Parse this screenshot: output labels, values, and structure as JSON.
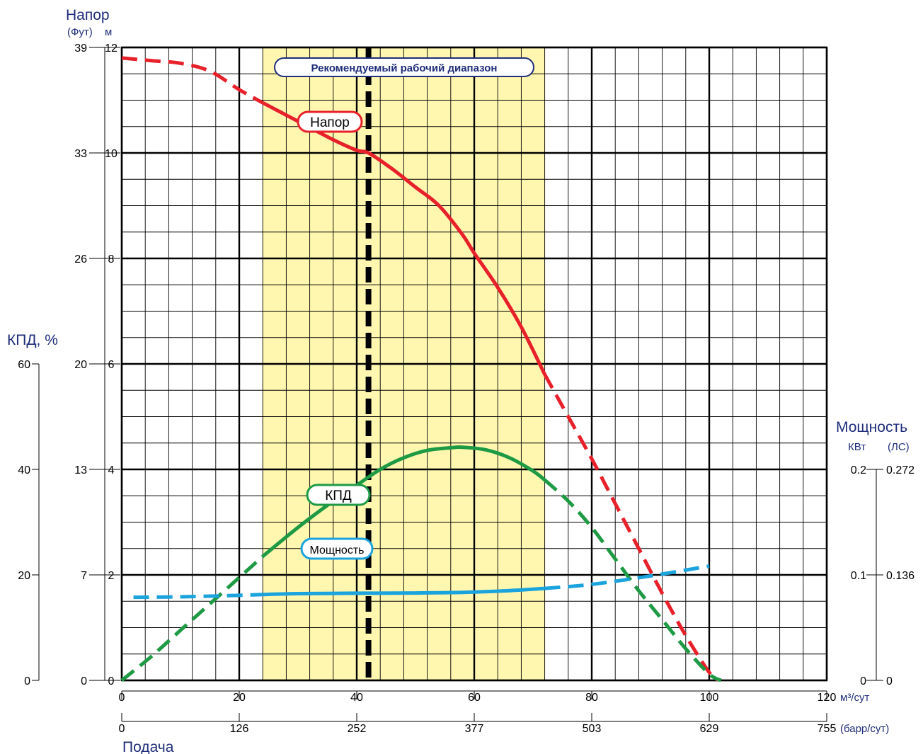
{
  "chart_data": {
    "type": "line",
    "axes": {
      "head": {
        "title": "Напор",
        "units": [
          "(Фут)",
          "м"
        ],
        "range_m": [
          0,
          12
        ],
        "ticks_ft": [
          "39",
          "33",
          "26",
          "20",
          "13",
          "7",
          "0"
        ],
        "ticks_m": [
          "12",
          "10",
          "8",
          "6",
          "4",
          "2",
          "0"
        ]
      },
      "efficiency": {
        "title": "КПД, %",
        "range": [
          0,
          60
        ],
        "ticks": [
          "60",
          "40",
          "20",
          "0"
        ]
      },
      "power": {
        "title": "Мощность",
        "units": [
          "КВт",
          "(ЛС)"
        ],
        "range_kw": [
          0,
          0.2
        ],
        "ticks_kw": [
          "0.2",
          "0.1",
          "0"
        ],
        "ticks_hp": [
          "0.272",
          "0.136",
          "0"
        ]
      },
      "flow": {
        "title": "Подача",
        "range": [
          0,
          120
        ],
        "ticks_m3": [
          "0",
          "20",
          "40",
          "60",
          "80",
          "100",
          "120"
        ],
        "unit_m3": "м³/сут",
        "ticks_bbl": [
          "0",
          "126",
          "252",
          "377",
          "503",
          "629",
          "755"
        ],
        "unit_bbl": "(барр/сут)"
      }
    },
    "recommended_range": {
      "label": "Рекомендуемый рабочий диапазон",
      "x": [
        24,
        72
      ],
      "best_point_x": 42
    },
    "series": [
      {
        "name": "Напор",
        "color": "#e8202a",
        "unit": "м",
        "solid_x_range": [
          24,
          72
        ],
        "x": [
          0,
          5,
          10,
          15,
          20,
          24,
          30,
          36,
          40,
          42,
          46,
          50,
          54,
          58,
          60,
          64,
          68,
          72,
          76,
          80,
          84,
          88,
          92,
          96,
          100,
          101.5
        ],
        "y": [
          11.8,
          11.75,
          11.7,
          11.55,
          11.2,
          10.95,
          10.6,
          10.25,
          10.05,
          10.0,
          9.7,
          9.35,
          9.0,
          8.45,
          8.1,
          7.45,
          6.7,
          5.8,
          5.0,
          4.2,
          3.35,
          2.5,
          1.65,
          0.85,
          0.15,
          0.0
        ]
      },
      {
        "name": "КПД",
        "color": "#1e9a44",
        "unit": "%",
        "solid_x_range": [
          24,
          72
        ],
        "x": [
          0,
          5,
          10,
          15,
          20,
          24,
          30,
          36,
          40,
          44,
          48,
          52,
          56,
          58,
          62,
          66,
          70,
          72,
          76,
          80,
          84,
          88,
          92,
          96,
          100,
          102
        ],
        "y": [
          0,
          4.5,
          9.5,
          14.5,
          19.5,
          23.5,
          29.0,
          34.0,
          37.0,
          40.0,
          42.2,
          43.6,
          44.1,
          44.2,
          43.7,
          42.2,
          39.7,
          38.0,
          34.0,
          29.0,
          23.0,
          17.0,
          11.5,
          6.0,
          1.2,
          0
        ]
      },
      {
        "name": "Мощность",
        "color": "#1aa3dd",
        "unit": "КВт",
        "solid_x_range": [
          24,
          72
        ],
        "x": [
          2,
          10,
          20,
          24,
          30,
          40,
          50,
          58,
          65,
          72,
          80,
          90,
          100
        ],
        "y": [
          0.0788,
          0.0792,
          0.0806,
          0.0814,
          0.0822,
          0.0826,
          0.0828,
          0.0834,
          0.0848,
          0.0872,
          0.091,
          0.099,
          0.1084
        ]
      }
    ],
    "grid": true,
    "legend_labels": {
      "head": "Напор",
      "efficiency": "КПД",
      "power": "Мощность"
    }
  }
}
